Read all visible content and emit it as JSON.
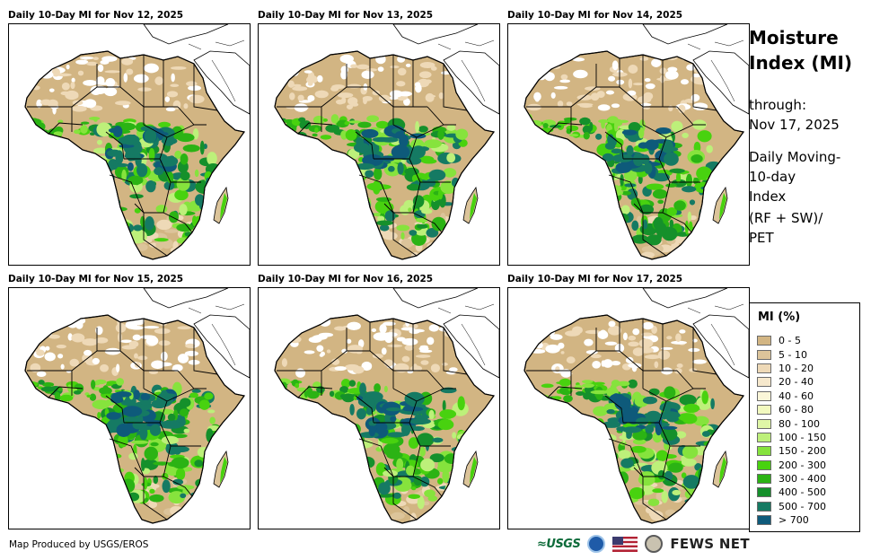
{
  "panels": [
    {
      "title": "Daily 10-Day MI for Nov 12, 2025"
    },
    {
      "title": "Daily 10-Day MI for Nov 13, 2025"
    },
    {
      "title": "Daily 10-Day MI for Nov 14, 2025"
    },
    {
      "title": "Daily 10-Day MI for Nov 15, 2025"
    },
    {
      "title": "Daily 10-Day MI for Nov 16, 2025"
    },
    {
      "title": "Daily 10-Day MI for Nov 17, 2025"
    }
  ],
  "side": {
    "title_line1": "Moisture",
    "title_line2": "Index (MI)",
    "through_label": "through:",
    "through_date": "Nov 17, 2025",
    "desc_line1": "Daily Moving-",
    "desc_line2": "10-day",
    "desc_line3": "Index",
    "formula_line1": "(RF + SW)/",
    "formula_line2": "PET"
  },
  "legend": {
    "title": "MI (%)",
    "items": [
      {
        "label": "0 - 5",
        "color": "#d2b583"
      },
      {
        "label": "5 - 10",
        "color": "#dcc49a"
      },
      {
        "label": "10 - 20",
        "color": "#eed9b7"
      },
      {
        "label": "20 - 40",
        "color": "#f6e8cc"
      },
      {
        "label": "40 - 60",
        "color": "#fbf6d8"
      },
      {
        "label": "60 - 80",
        "color": "#f2f9bf"
      },
      {
        "label": "80 - 100",
        "color": "#dff6a6"
      },
      {
        "label": "100 - 150",
        "color": "#bdf07a"
      },
      {
        "label": "150 - 200",
        "color": "#86e33d"
      },
      {
        "label": "200 - 300",
        "color": "#48d20f"
      },
      {
        "label": "300 - 400",
        "color": "#2bb314"
      },
      {
        "label": "400 - 500",
        "color": "#15902b"
      },
      {
        "label": "500 - 700",
        "color": "#157a63"
      },
      {
        "label": "> 700",
        "color": "#0e5a7a"
      }
    ]
  },
  "credit": "Map Produced by USGS/EROS",
  "logos": {
    "usgs": "≈USGS",
    "fews": "FEWS NET"
  },
  "icons": {
    "noaa": "noaa-logo-icon",
    "flag": "us-flag-icon",
    "seal": "state-department-seal-icon"
  }
}
